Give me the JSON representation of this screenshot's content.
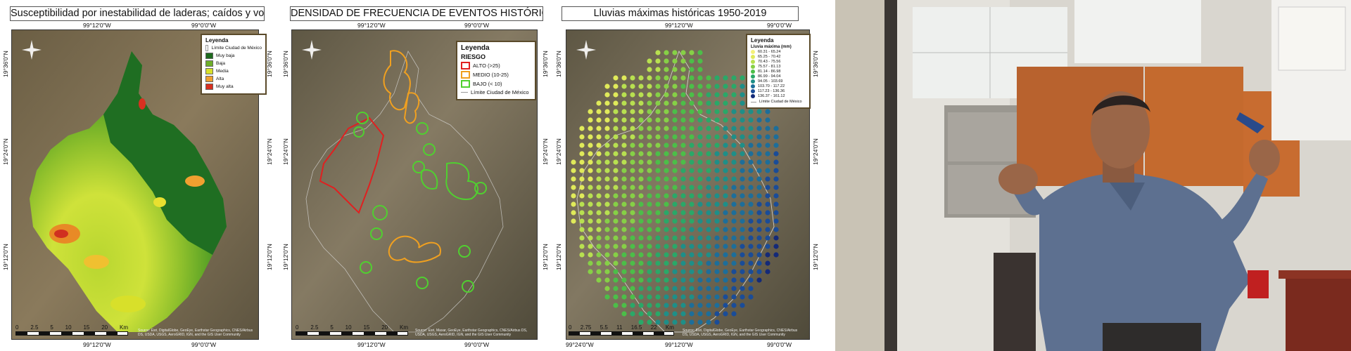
{
  "maps": [
    {
      "title": "Susceptibilidad por inestabilidad de laderas; caídos y volteos",
      "top_coords": [
        "99°12'0\"W",
        "99°0'0\"W"
      ],
      "bottom_coords": [
        "99°12'0\"W",
        "99°0'0\"W"
      ],
      "left_coords": [
        "19°36'0\"N",
        "19°24'0\"N",
        "19°12'0\"N"
      ],
      "right_coords": [
        "19°36'0\"N",
        "19°24'0\"N",
        "19°12'0\"N"
      ],
      "legend": {
        "title": "Leyenda",
        "boundary": "Límite Ciudad de México",
        "items": [
          {
            "label": "Muy baja",
            "color": "#1e6b1e"
          },
          {
            "label": "Baja",
            "color": "#6fae2a"
          },
          {
            "label": "Media",
            "color": "#d8e02a"
          },
          {
            "label": "Alta",
            "color": "#f0a030"
          },
          {
            "label": "Muy alta",
            "color": "#d83020"
          }
        ]
      },
      "scale": [
        "0",
        "2.5",
        "5",
        "10",
        "15",
        "20"
      ],
      "scale_unit": "Km",
      "attribution": "Source: Esri, DigitalGlobe, GeoEye, Earthstar Geographics, CNES/Airbus DS, USDA, USGS, AeroGRID, IGN, and the GIS User Community"
    },
    {
      "title": "DENSIDAD DE FRECUENCIA DE EVENTOS HISTÓRICOS",
      "top_coords": [
        "99°12'0\"W",
        "99°0'0\"W"
      ],
      "bottom_coords": [
        "99°12'0\"W",
        "99°0'0\"W"
      ],
      "left_coords": [
        "19°36'0\"N",
        "19°24'0\"N",
        "19°12'0\"N"
      ],
      "right_coords": [
        "19°36'0\"N",
        "19°24'0\"N",
        "19°12'0\"N"
      ],
      "legend": {
        "title": "Leyenda",
        "subtitle": "RIESGO",
        "boundary": "Límite Ciudad de México",
        "items": [
          {
            "label": "ALTO (>25)",
            "color": "#e02020"
          },
          {
            "label": "MEDIO (10-25)",
            "color": "#f0a020"
          },
          {
            "label": "BAJO (< 10)",
            "color": "#50d030"
          }
        ]
      },
      "scale": [
        "0",
        "2.5",
        "5",
        "10",
        "15",
        "20"
      ],
      "scale_unit": "Km",
      "attribution": "Source: Esri, Maxar, GeoEye, Earthstar Geographics, CNES/Airbus DS, USDA, USGS, AeroGRID, IGN, and the GIS User Community"
    },
    {
      "title": "Lluvias máximas históricas 1950-2019",
      "top_coords": [
        "99°12'0\"W",
        "99°0'0\"W"
      ],
      "bottom_coords": [
        "99°24'0\"W",
        "99°12'0\"W",
        "99°0'0\"W"
      ],
      "left_coords": [
        "19°36'0\"N",
        "19°24'0\"N",
        "19°12'0\"N"
      ],
      "right_coords": [
        "19°36'0\"N",
        "19°24'0\"N",
        "19°12'0\"N"
      ],
      "legend": {
        "title": "Leyenda",
        "subtitle": "Lluvia máxima (mm)",
        "boundary": "Límite Ciudad de México",
        "items": [
          {
            "label": "60.31 - 65.24",
            "color": "#f4f17a"
          },
          {
            "label": "65.25 - 70.42",
            "color": "#e0ea5a"
          },
          {
            "label": "70.43 - 75.56",
            "color": "#b8e050"
          },
          {
            "label": "75.57 - 81.13",
            "color": "#86d046"
          },
          {
            "label": "81.14 - 86.98",
            "color": "#4cbe48"
          },
          {
            "label": "86.99 - 94.04",
            "color": "#2aa868"
          },
          {
            "label": "94.05 - 103.69",
            "color": "#1e8f88"
          },
          {
            "label": "103.70 - 117.22",
            "color": "#1d6e9a"
          },
          {
            "label": "117.23 - 136.36",
            "color": "#1a4c98"
          },
          {
            "label": "136.37 - 161.12",
            "color": "#142a78"
          }
        ]
      },
      "scale": [
        "0",
        "2.75",
        "5.5",
        "11",
        "16.5",
        "22"
      ],
      "scale_unit": "Km",
      "attribution": "Source: Esri, DigitalGlobe, GeoEye, Earthstar Geographics, CNES/Airbus DS, USDA, USGS, AeroGRID, IGN, and the GIS User Community"
    }
  ]
}
